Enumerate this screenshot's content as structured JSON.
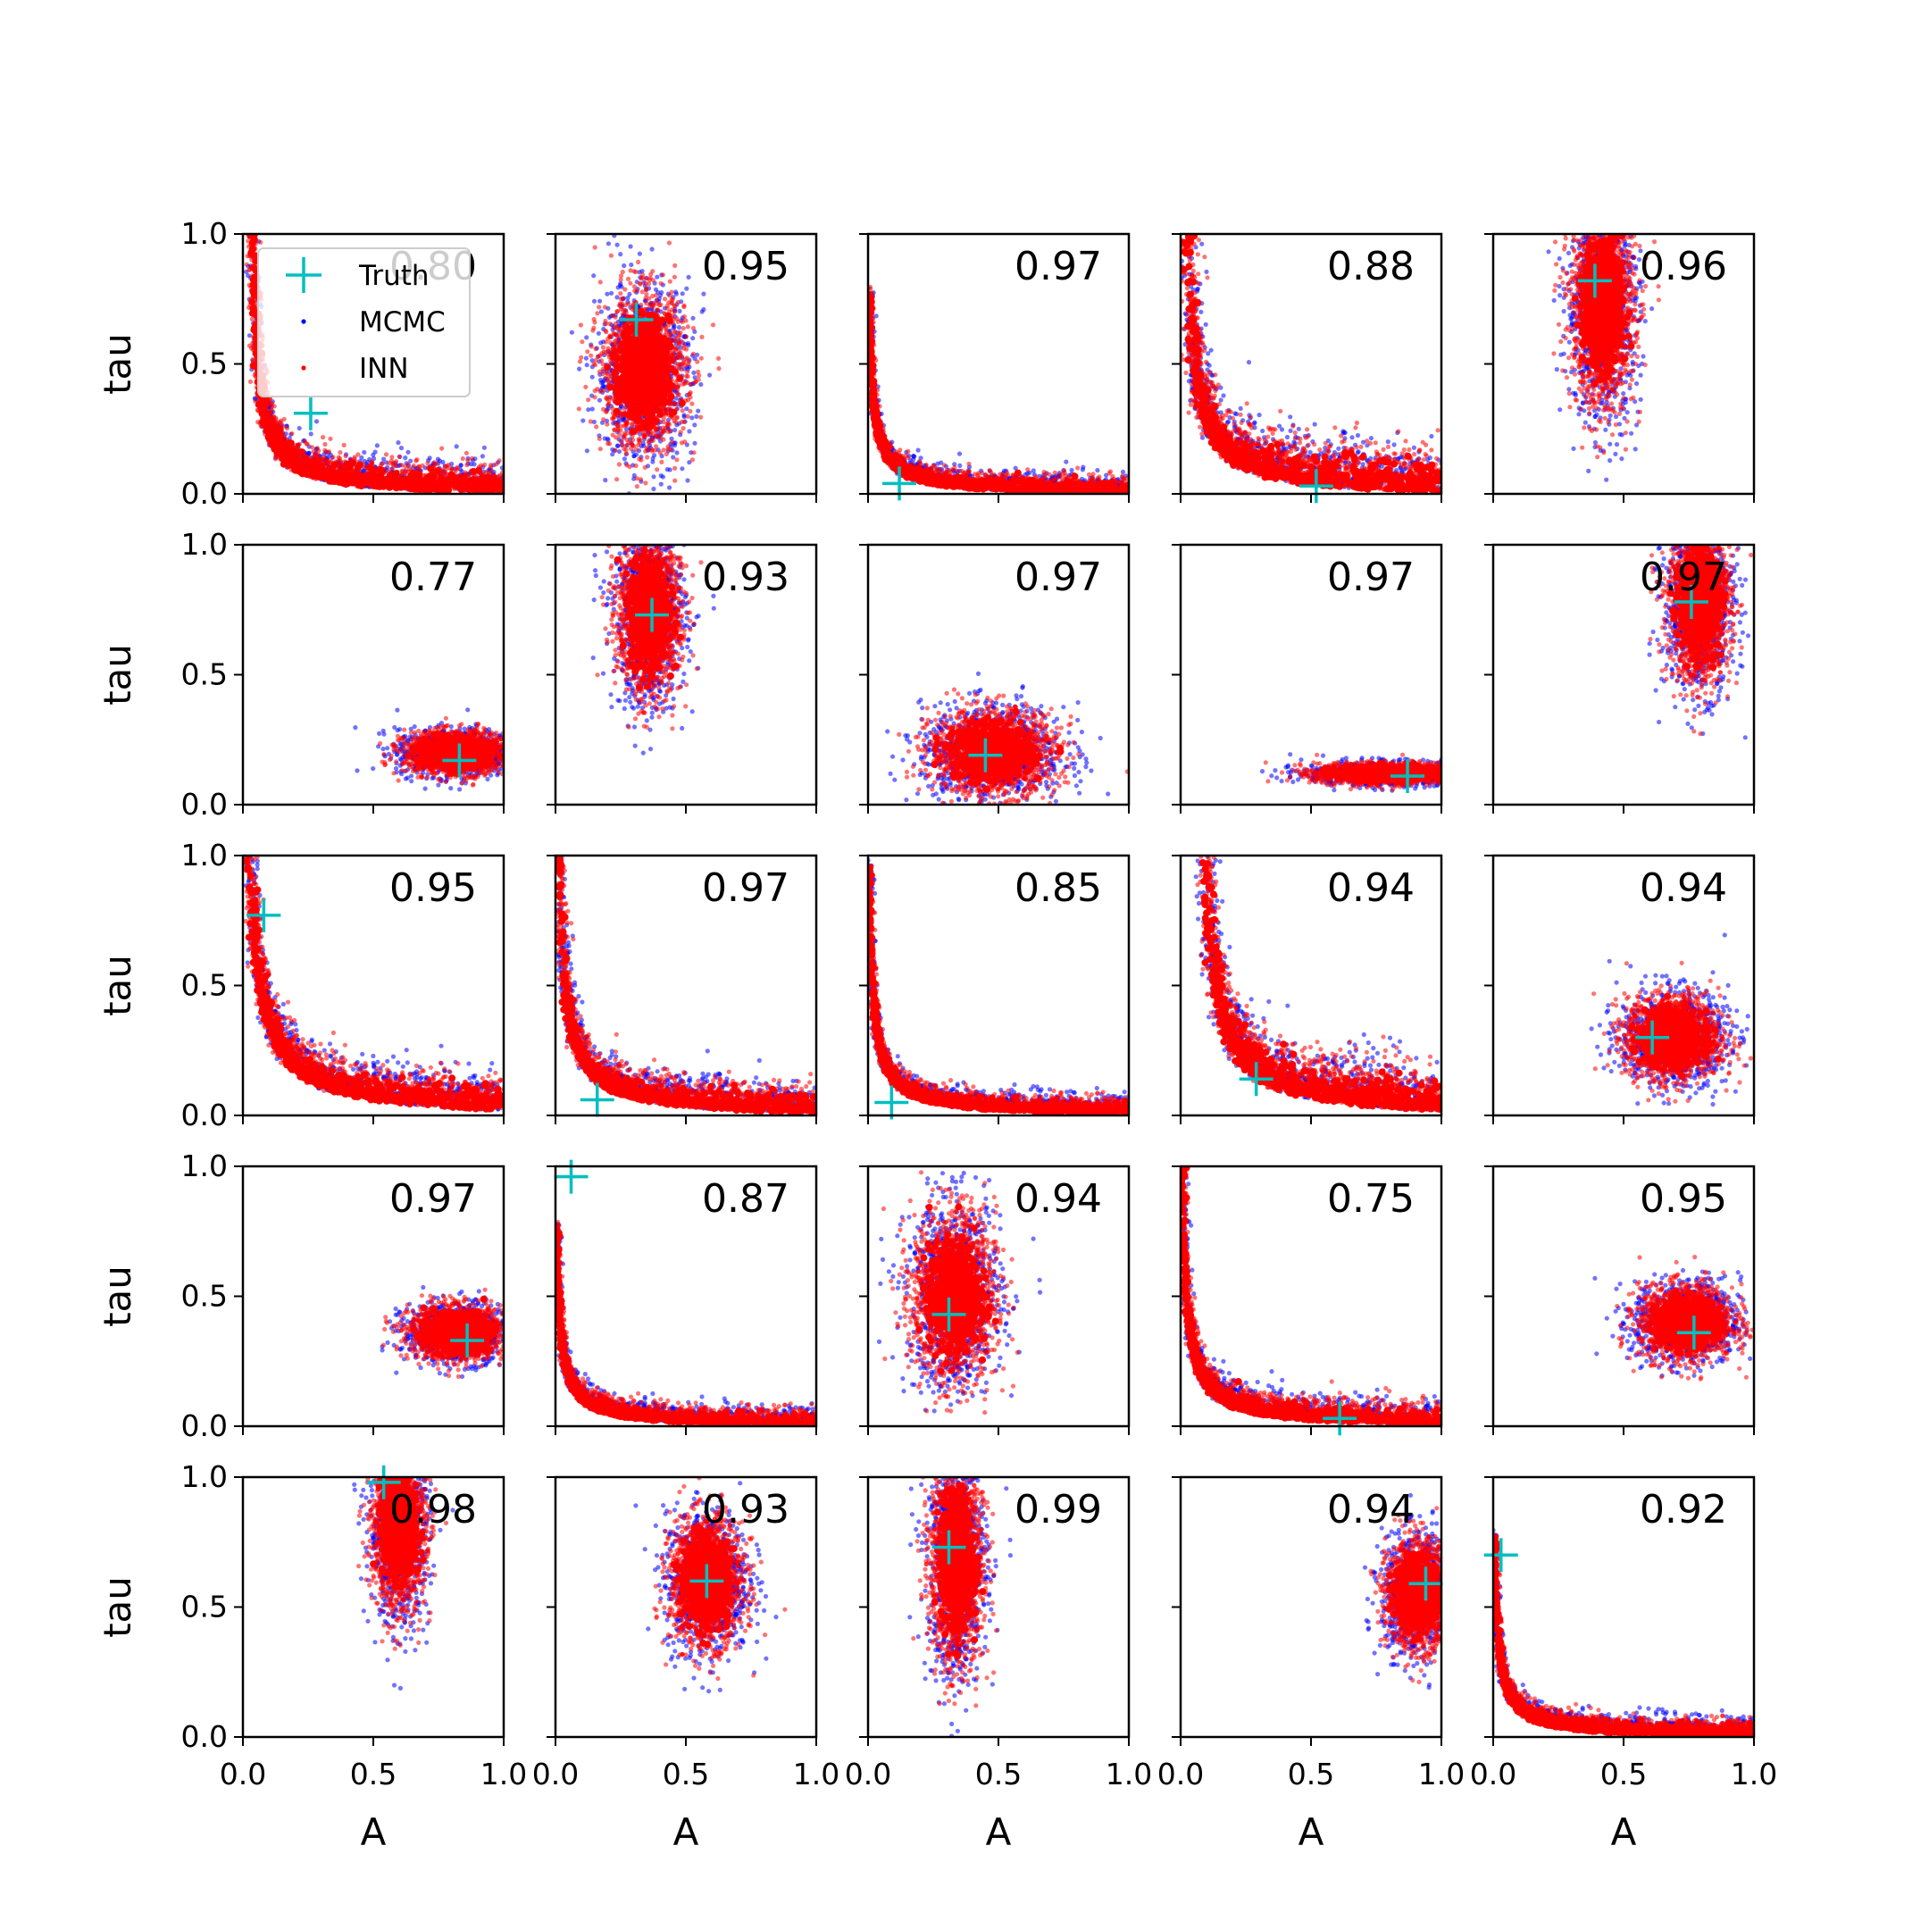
{
  "chart_data": {
    "type": "scatter",
    "grid": false,
    "legend": {
      "placement": "upper-left of first panel",
      "entries": [
        {
          "label": "Truth",
          "marker": "plus",
          "color": "#00bfbf"
        },
        {
          "label": "MCMC",
          "marker": "dot",
          "color": "#0000ff"
        },
        {
          "label": "INN",
          "marker": "dot",
          "color": "#ff0000"
        }
      ]
    },
    "colors": {
      "truth": "#00bfbf",
      "mcmc": "#0000ff",
      "inn": "#ff0000"
    },
    "xlabel": "A",
    "ylabel": "tau",
    "xlim": [
      0,
      1
    ],
    "ylim": [
      0,
      1
    ],
    "xticks": [
      "0.0",
      "0.5",
      "1.0"
    ],
    "yticks": [
      "0.0",
      "0.5",
      "1.0"
    ],
    "rows": 5,
    "cols": 5,
    "panels": [
      {
        "value": "0.80",
        "truth": [
          0.26,
          0.31
        ],
        "shape": "hyperbola",
        "xmin": 0.03,
        "c": 0.02,
        "spread": 0.05
      },
      {
        "value": "0.95",
        "truth": [
          0.31,
          0.67
        ],
        "shape": "blob",
        "center": [
          0.34,
          0.47
        ],
        "sx": 0.08,
        "sy": 0.15
      },
      {
        "value": "0.97",
        "truth": [
          0.12,
          0.04
        ],
        "shape": "hyperbola",
        "xmin": 0.0,
        "c": 0.012,
        "spread": 0.03
      },
      {
        "value": "0.88",
        "truth": [
          0.52,
          0.03
        ],
        "shape": "hyperbola",
        "xmin": 0.01,
        "c": 0.03,
        "spread": 0.08
      },
      {
        "value": "0.96",
        "truth": [
          0.39,
          0.82
        ],
        "shape": "blob",
        "center": [
          0.42,
          0.73
        ],
        "sx": 0.06,
        "sy": 0.2
      },
      {
        "value": "0.77",
        "truth": [
          0.83,
          0.17
        ],
        "shape": "blob",
        "center": [
          0.82,
          0.2
        ],
        "sx": 0.1,
        "sy": 0.04
      },
      {
        "value": "0.93",
        "truth": [
          0.37,
          0.73
        ],
        "shape": "blob",
        "center": [
          0.36,
          0.74
        ],
        "sx": 0.06,
        "sy": 0.16
      },
      {
        "value": "0.97",
        "truth": [
          0.45,
          0.19
        ],
        "shape": "blob",
        "center": [
          0.48,
          0.2
        ],
        "sx": 0.12,
        "sy": 0.08
      },
      {
        "value": "0.97",
        "truth": [
          0.87,
          0.11
        ],
        "shape": "blob",
        "center": [
          0.8,
          0.12
        ],
        "sx": 0.14,
        "sy": 0.02
      },
      {
        "value": "0.97",
        "truth": [
          0.76,
          0.78
        ],
        "shape": "blob",
        "center": [
          0.79,
          0.78
        ],
        "sx": 0.06,
        "sy": 0.15
      },
      {
        "value": "0.95",
        "truth": [
          0.08,
          0.77
        ],
        "shape": "hyperbola",
        "xmin": 0.0,
        "c": 0.04,
        "spread": 0.06
      },
      {
        "value": "0.97",
        "truth": [
          0.16,
          0.06
        ],
        "shape": "hyperbola",
        "xmin": 0.0,
        "c": 0.025,
        "spread": 0.05
      },
      {
        "value": "0.85",
        "truth": [
          0.09,
          0.05
        ],
        "shape": "hyperbola",
        "xmin": 0.0,
        "c": 0.015,
        "spread": 0.03
      },
      {
        "value": "0.94",
        "truth": [
          0.29,
          0.14
        ],
        "shape": "hyperbola",
        "xmin": 0.07,
        "c": 0.04,
        "spread": 0.08
      },
      {
        "value": "0.94",
        "truth": [
          0.61,
          0.3
        ],
        "shape": "blob",
        "center": [
          0.69,
          0.3
        ],
        "sx": 0.09,
        "sy": 0.08
      },
      {
        "value": "0.97",
        "truth": [
          0.86,
          0.33
        ],
        "shape": "blob",
        "center": [
          0.82,
          0.36
        ],
        "sx": 0.09,
        "sy": 0.05
      },
      {
        "value": "0.87",
        "truth": [
          0.06,
          0.96
        ],
        "shape": "hyperbola",
        "xmin": 0.0,
        "c": 0.012,
        "spread": 0.03
      },
      {
        "value": "0.94",
        "truth": [
          0.31,
          0.43
        ],
        "shape": "blob",
        "center": [
          0.33,
          0.5
        ],
        "sx": 0.08,
        "sy": 0.16
      },
      {
        "value": "0.75",
        "truth": [
          0.61,
          0.03
        ],
        "shape": "hyperbola",
        "xmin": 0.0,
        "c": 0.018,
        "spread": 0.04
      },
      {
        "value": "0.95",
        "truth": [
          0.77,
          0.36
        ],
        "shape": "blob",
        "center": [
          0.74,
          0.4
        ],
        "sx": 0.09,
        "sy": 0.07
      },
      {
        "value": "0.98",
        "truth": [
          0.54,
          0.98
        ],
        "shape": "blob",
        "center": [
          0.6,
          0.81
        ],
        "sx": 0.05,
        "sy": 0.16
      },
      {
        "value": "0.93",
        "truth": [
          0.58,
          0.6
        ],
        "shape": "blob",
        "center": [
          0.58,
          0.6
        ],
        "sx": 0.07,
        "sy": 0.12
      },
      {
        "value": "0.99",
        "truth": [
          0.31,
          0.73
        ],
        "shape": "blob",
        "center": [
          0.34,
          0.68
        ],
        "sx": 0.05,
        "sy": 0.2
      },
      {
        "value": "0.94",
        "truth": [
          0.94,
          0.59
        ],
        "shape": "blob",
        "center": [
          0.91,
          0.55
        ],
        "sx": 0.06,
        "sy": 0.1
      },
      {
        "value": "0.92",
        "truth": [
          0.03,
          0.7
        ],
        "shape": "hyperbola",
        "xmin": 0.0,
        "c": 0.012,
        "spread": 0.03
      }
    ]
  }
}
